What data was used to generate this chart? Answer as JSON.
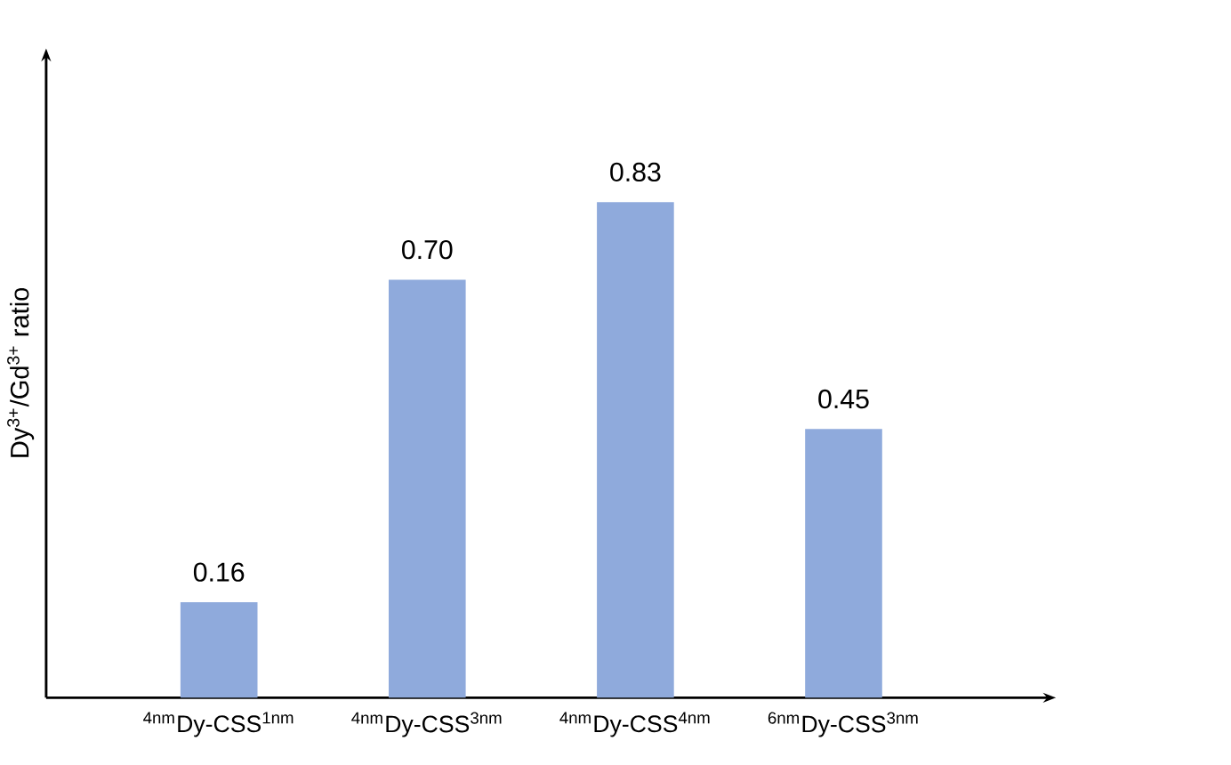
{
  "chart_data": {
    "type": "bar",
    "ylabel": "Dy$^{3+}$/Gd$^{3+}$ ratio",
    "categories": [
      "$^{4nm}$Dy-CSS$^{1nm}$",
      "$^{4nm}$Dy-CSS$^{3nm}$",
      "$^{4nm}$Dy-CSS$^{4nm}$",
      "$^{6nm}$Dy-CSS$^{3nm}$"
    ],
    "values": [
      0.16,
      0.7,
      0.83,
      0.45
    ],
    "value_labels": [
      "0.16",
      "0.70",
      "0.83",
      "0.45"
    ],
    "color": "#8faadc"
  }
}
